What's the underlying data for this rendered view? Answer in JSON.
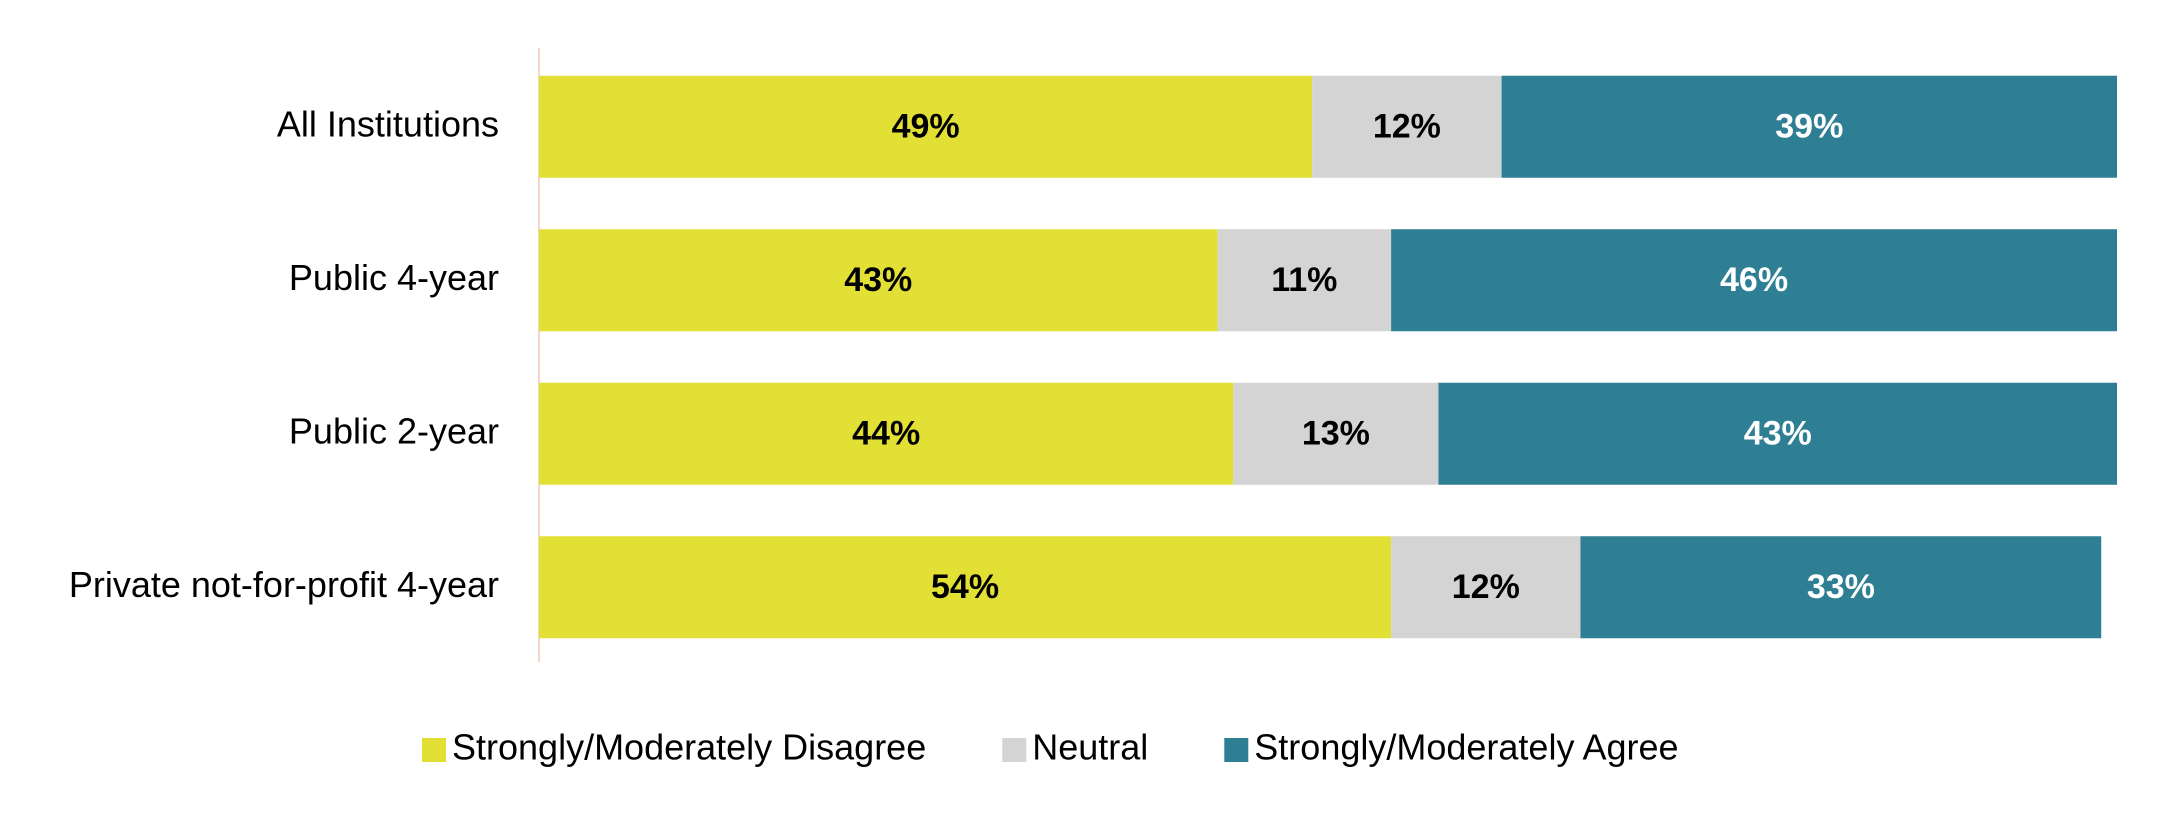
{
  "chart_data": {
    "type": "stacked-bar",
    "orientation": "horizontal",
    "categories": [
      "All Institutions",
      "Public 4-year",
      "Public 2-year",
      "Private not-for-profit 4-year"
    ],
    "xlim": [
      0,
      100
    ],
    "series": [
      {
        "name": "Strongly/Moderately Disagree",
        "color": "#e3e035",
        "label_color": "#000000",
        "values": [
          49,
          43,
          44,
          54
        ],
        "value_labels": [
          "49%",
          "43%",
          "44%",
          "54%"
        ]
      },
      {
        "name": "Neutral",
        "color": "#d3d4d3",
        "label_color": "#000000",
        "values": [
          12,
          11,
          13,
          12
        ],
        "value_labels": [
          "12%",
          "11%",
          "13%",
          "12%"
        ]
      },
      {
        "name": "Strongly/Moderately Agree",
        "color": "#2e7e94",
        "label_color": "#ffffff",
        "values": [
          39,
          46,
          43,
          33
        ],
        "value_labels": [
          "39%",
          "46%",
          "43%",
          "33%"
        ]
      }
    ],
    "legend": "bottom"
  }
}
